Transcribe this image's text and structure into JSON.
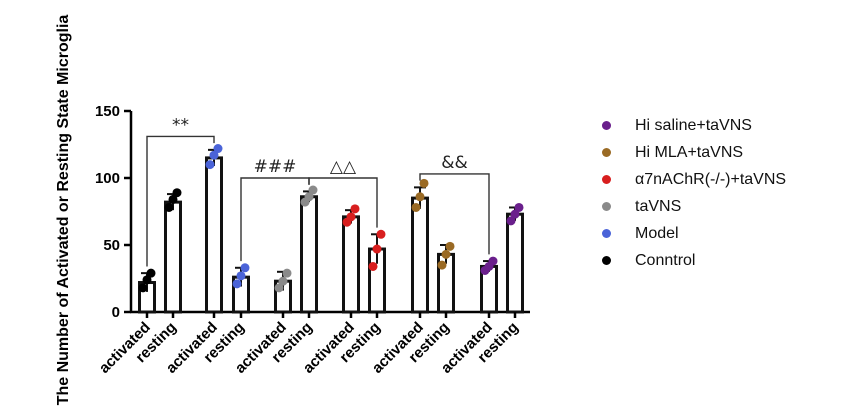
{
  "chart_data": {
    "type": "bar",
    "ylabel": "The Number of Activated or Resting State Microglia",
    "ylim": [
      0,
      150
    ],
    "yticks": [
      0,
      50,
      100,
      150
    ],
    "categories": [
      "activated",
      "resting",
      "activated",
      "resting",
      "activated",
      "resting",
      "activated",
      "resting",
      "activated",
      "resting",
      "activated",
      "resting"
    ],
    "groups": [
      "Conntrol",
      "Conntrol",
      "Model",
      "Model",
      "taVNS",
      "taVNS",
      "α7nAChR(-/-)+taVNS",
      "α7nAChR(-/-)+taVNS",
      "Hi MLA+taVNS",
      "Hi MLA+taVNS",
      "Hi saline+taVNS",
      "Hi saline+taVNS"
    ],
    "values": [
      22,
      82,
      115,
      26,
      23,
      86,
      71,
      47,
      85,
      43,
      34,
      73
    ],
    "errors": [
      7,
      6,
      6,
      7,
      7,
      4,
      5,
      11,
      8,
      7,
      4,
      5
    ],
    "points": [
      [
        18,
        24,
        29
      ],
      [
        78,
        84,
        89
      ],
      [
        110,
        117,
        122
      ],
      [
        21,
        27,
        33
      ],
      [
        18,
        23,
        29
      ],
      [
        82,
        86,
        91
      ],
      [
        67,
        71,
        77
      ],
      [
        34,
        47,
        58
      ],
      [
        78,
        86,
        96
      ],
      [
        35,
        43,
        49
      ],
      [
        31,
        34,
        38
      ],
      [
        68,
        73,
        78
      ]
    ],
    "point_colors": [
      "#000000",
      "#000000",
      "#4a63d8",
      "#4a63d8",
      "#8a8a8a",
      "#8a8a8a",
      "#d81e1e",
      "#d81e1e",
      "#9a6a24",
      "#9a6a24",
      "#6a1f8c",
      "#6a1f8c"
    ],
    "annotations": [
      {
        "text": "**",
        "from": 0,
        "to": 2
      },
      {
        "text": "###",
        "from": 3,
        "to": 5
      },
      {
        "text": "△△",
        "from": 5,
        "to": 7
      },
      {
        "text": "&&",
        "from": 8,
        "to": 10
      }
    ],
    "legend": [
      {
        "label": "Hi saline+taVNS",
        "color": "#6a1f8c"
      },
      {
        "label": "Hi MLA+taVNS",
        "color": "#9a6a24"
      },
      {
        "label": "α7nAChR(-/-)+taVNS",
        "color": "#d81e1e"
      },
      {
        "label": "taVNS",
        "color": "#8a8a8a"
      },
      {
        "label": "Model",
        "color": "#4a63d8"
      },
      {
        "label": "Conntrol",
        "color": "#000000"
      }
    ]
  }
}
